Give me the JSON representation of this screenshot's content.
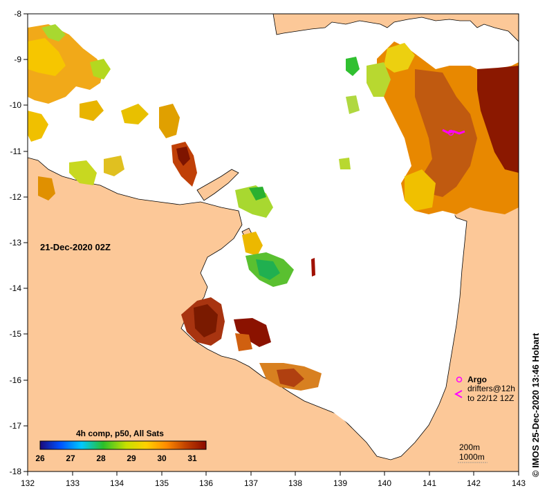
{
  "map": {
    "date_label": "21-Dec-2020 02Z",
    "credit": "© IMOS 25-Dec-2020 13:46 Hobart",
    "x_ticks": [
      "132",
      "133",
      "134",
      "135",
      "136",
      "137",
      "138",
      "139",
      "140",
      "141",
      "142",
      "143"
    ],
    "y_ticks": [
      "-8",
      "-9",
      "-10",
      "-11",
      "-12",
      "-13",
      "-14",
      "-15",
      "-16",
      "-17",
      "-18"
    ],
    "colorbar": {
      "title": "4h comp, p50, All Sats",
      "ticks": [
        "26",
        "27",
        "28",
        "29",
        "30",
        "31"
      ],
      "stops": [
        "#1a0a7a",
        "#0050ff",
        "#00c8ff",
        "#2ac02a",
        "#c8e000",
        "#ffd000",
        "#ff8c00",
        "#c04000",
        "#8b0a00"
      ]
    },
    "legend": {
      "argo_label": "Argo",
      "drifters_label": "drifters@12h",
      "drifters_range": "to 22/12 12Z"
    },
    "isobaths": {
      "line1": "200m",
      "line2": "1000m"
    },
    "colors": {
      "land": "#fcc898",
      "marker": "#ff00ff"
    }
  }
}
